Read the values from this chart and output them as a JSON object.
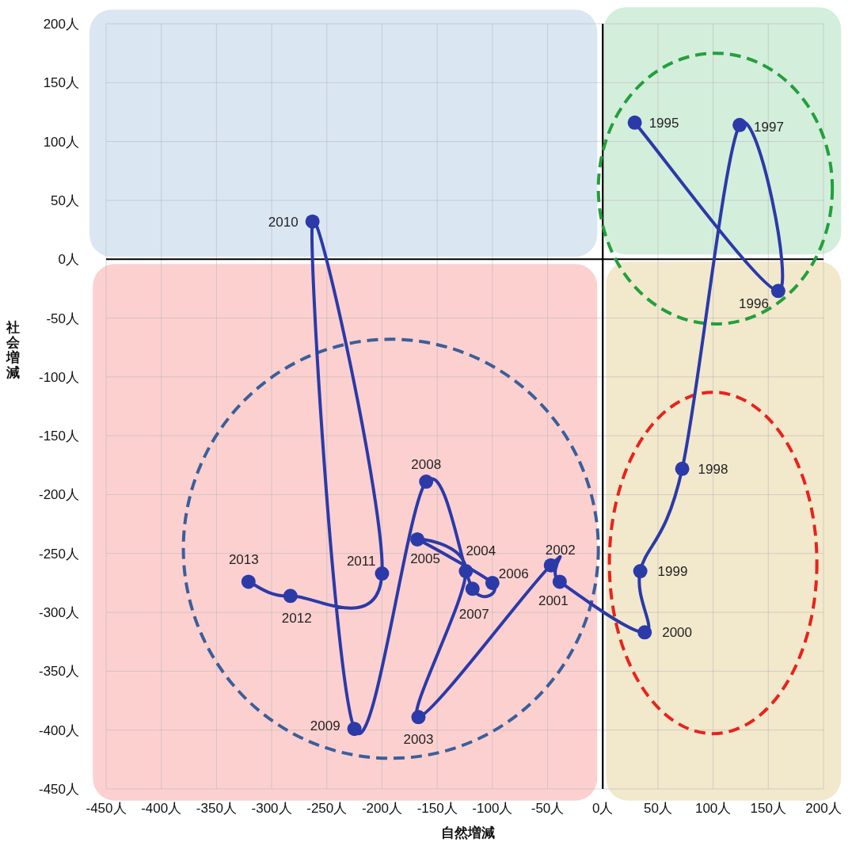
{
  "chart_data": {
    "type": "line",
    "xlabel": "自然増減",
    "ylabel": "社会増減",
    "xlim": [
      -450,
      200
    ],
    "ylim": [
      -450,
      200
    ],
    "xticks": [
      {
        "value": -450,
        "label": "-450人"
      },
      {
        "value": -400,
        "label": "-400人"
      },
      {
        "value": -350,
        "label": "-350人"
      },
      {
        "value": -300,
        "label": "-300人"
      },
      {
        "value": -250,
        "label": "-250人"
      },
      {
        "value": -200,
        "label": "-200人"
      },
      {
        "value": -150,
        "label": "-150人"
      },
      {
        "value": -100,
        "label": "-100人"
      },
      {
        "value": -50,
        "label": "-50人"
      },
      {
        "value": 0,
        "label": "0人"
      },
      {
        "value": 50,
        "label": "50人"
      },
      {
        "value": 100,
        "label": "100人"
      },
      {
        "value": 150,
        "label": "150人"
      },
      {
        "value": 200,
        "label": "200人"
      }
    ],
    "yticks": [
      {
        "value": -450,
        "label": "-450人"
      },
      {
        "value": -400,
        "label": "-400人"
      },
      {
        "value": -350,
        "label": "-350人"
      },
      {
        "value": -300,
        "label": "-300人"
      },
      {
        "value": -250,
        "label": "-250人"
      },
      {
        "value": -200,
        "label": "-200人"
      },
      {
        "value": -150,
        "label": "-150人"
      },
      {
        "value": -100,
        "label": "-100人"
      },
      {
        "value": -50,
        "label": "-50人"
      },
      {
        "value": 0,
        "label": "0人"
      },
      {
        "value": 50,
        "label": "50人"
      },
      {
        "value": 100,
        "label": "100人"
      },
      {
        "value": 150,
        "label": "150人"
      },
      {
        "value": 200,
        "label": "200人"
      }
    ],
    "grid": true,
    "marker": "circle",
    "line_style": "solid",
    "series": [
      {
        "color": "#2b3aa8",
        "x": [
          29,
          159,
          124,
          72,
          34,
          38,
          -39,
          -47,
          -167,
          -124,
          -168,
          -100,
          -118,
          -160,
          -225,
          -263,
          -200,
          -283,
          -321
        ],
        "values": [
          116,
          -27,
          114,
          -178,
          -265,
          -317,
          -274,
          -260,
          -389,
          -265,
          -238,
          -275,
          -280,
          -189,
          -399,
          32,
          -267,
          -286,
          -274
        ]
      }
    ],
    "annotations": [
      {
        "text": "1995",
        "x": 29,
        "y": 116
      },
      {
        "text": "1996",
        "x": 159,
        "y": -27
      },
      {
        "text": "1997",
        "x": 124,
        "y": 114
      },
      {
        "text": "1998",
        "x": 72,
        "y": -178
      },
      {
        "text": "1999",
        "x": 34,
        "y": -265
      },
      {
        "text": "2000",
        "x": 38,
        "y": -317
      },
      {
        "text": "2001",
        "x": -39,
        "y": -274
      },
      {
        "text": "2002",
        "x": -47,
        "y": -260
      },
      {
        "text": "2003",
        "x": -167,
        "y": -389
      },
      {
        "text": "2004",
        "x": -124,
        "y": -265
      },
      {
        "text": "2005",
        "x": -168,
        "y": -238
      },
      {
        "text": "2006",
        "x": -100,
        "y": -275
      },
      {
        "text": "2007",
        "x": -118,
        "y": -280
      },
      {
        "text": "2008",
        "x": -160,
        "y": -189
      },
      {
        "text": "2009",
        "x": -225,
        "y": -399
      },
      {
        "text": "2010",
        "x": -263,
        "y": 32
      },
      {
        "text": "2011",
        "x": -200,
        "y": -267
      },
      {
        "text": "2012",
        "x": -283,
        "y": -286
      },
      {
        "text": "2013",
        "x": -321,
        "y": -274
      }
    ]
  }
}
